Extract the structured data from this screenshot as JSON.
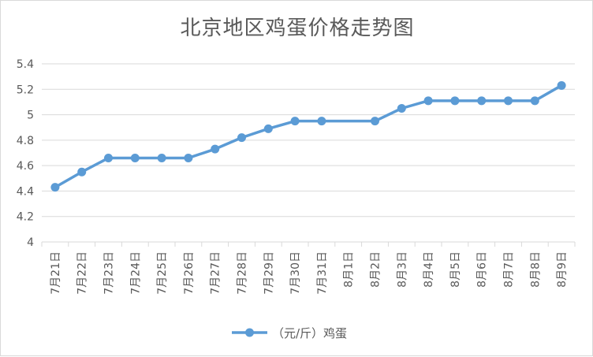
{
  "chart_data": {
    "type": "line",
    "title": "北京地区鸡蛋价格走势图",
    "categories": [
      "7月21日",
      "7月22日",
      "7月23日",
      "7月24日",
      "7月25日",
      "7月26日",
      "7月27日",
      "7月28日",
      "7月29日",
      "7月30日",
      "7月31日",
      "8月1日",
      "8月2日",
      "8月3日",
      "8月4日",
      "8月5日",
      "8月6日",
      "8月7日",
      "8月8日",
      "8月9日"
    ],
    "series": [
      {
        "name": "（元/斤）鸡蛋",
        "values": [
          4.43,
          4.55,
          4.66,
          4.66,
          4.66,
          4.66,
          4.73,
          4.82,
          4.89,
          4.95,
          4.95,
          null,
          4.95,
          5.05,
          5.11,
          5.11,
          5.11,
          5.11,
          5.11,
          5.23
        ],
        "color": "#5b9bd5"
      }
    ],
    "ylim": [
      4,
      5.4
    ],
    "yticks": [
      "4",
      "4.2",
      "4.4",
      "4.6",
      "4.8",
      "5",
      "5.2",
      "5.4"
    ],
    "grid": true,
    "legend_position": "bottom"
  }
}
